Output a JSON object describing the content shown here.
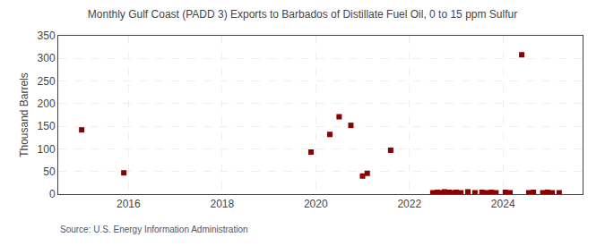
{
  "chart_data": {
    "type": "scatter",
    "title": "Monthly Gulf Coast (PADD 3) Exports to Barbados of Distillate Fuel Oil, 0 to 15 ppm Sulfur",
    "ylabel": "Thousand Barrels",
    "annotations": [
      "Source: U.S. Energy Information Administration"
    ],
    "color": "#8b0000",
    "marker": "square",
    "grid": true,
    "xlim": [
      2014.5,
      2025.7
    ],
    "xticks": [
      2016,
      2018,
      2020,
      2022,
      2024
    ],
    "ylim": [
      0,
      350
    ],
    "yticks": [
      0,
      50,
      100,
      150,
      200,
      250,
      300,
      350
    ],
    "x": [
      2015.0,
      2015.9,
      2019.9,
      2020.3,
      2020.5,
      2020.75,
      2021.0,
      2021.1,
      2021.6,
      2024.4,
      2022.5,
      2022.6,
      2022.7,
      2022.75,
      2022.85,
      2022.9,
      2023.0,
      2023.1,
      2023.25,
      2023.4,
      2023.55,
      2023.65,
      2023.75,
      2023.85,
      2024.05,
      2024.15,
      2024.55,
      2024.65,
      2024.85,
      2024.95,
      2025.05,
      2025.2
    ],
    "values": [
      142,
      47,
      93,
      132,
      171,
      152,
      40,
      46,
      97,
      308,
      3,
      4,
      3,
      5,
      4,
      3,
      4,
      3,
      5,
      3,
      4,
      3,
      4,
      3,
      4,
      3,
      3,
      4,
      3,
      4,
      3,
      3
    ]
  }
}
